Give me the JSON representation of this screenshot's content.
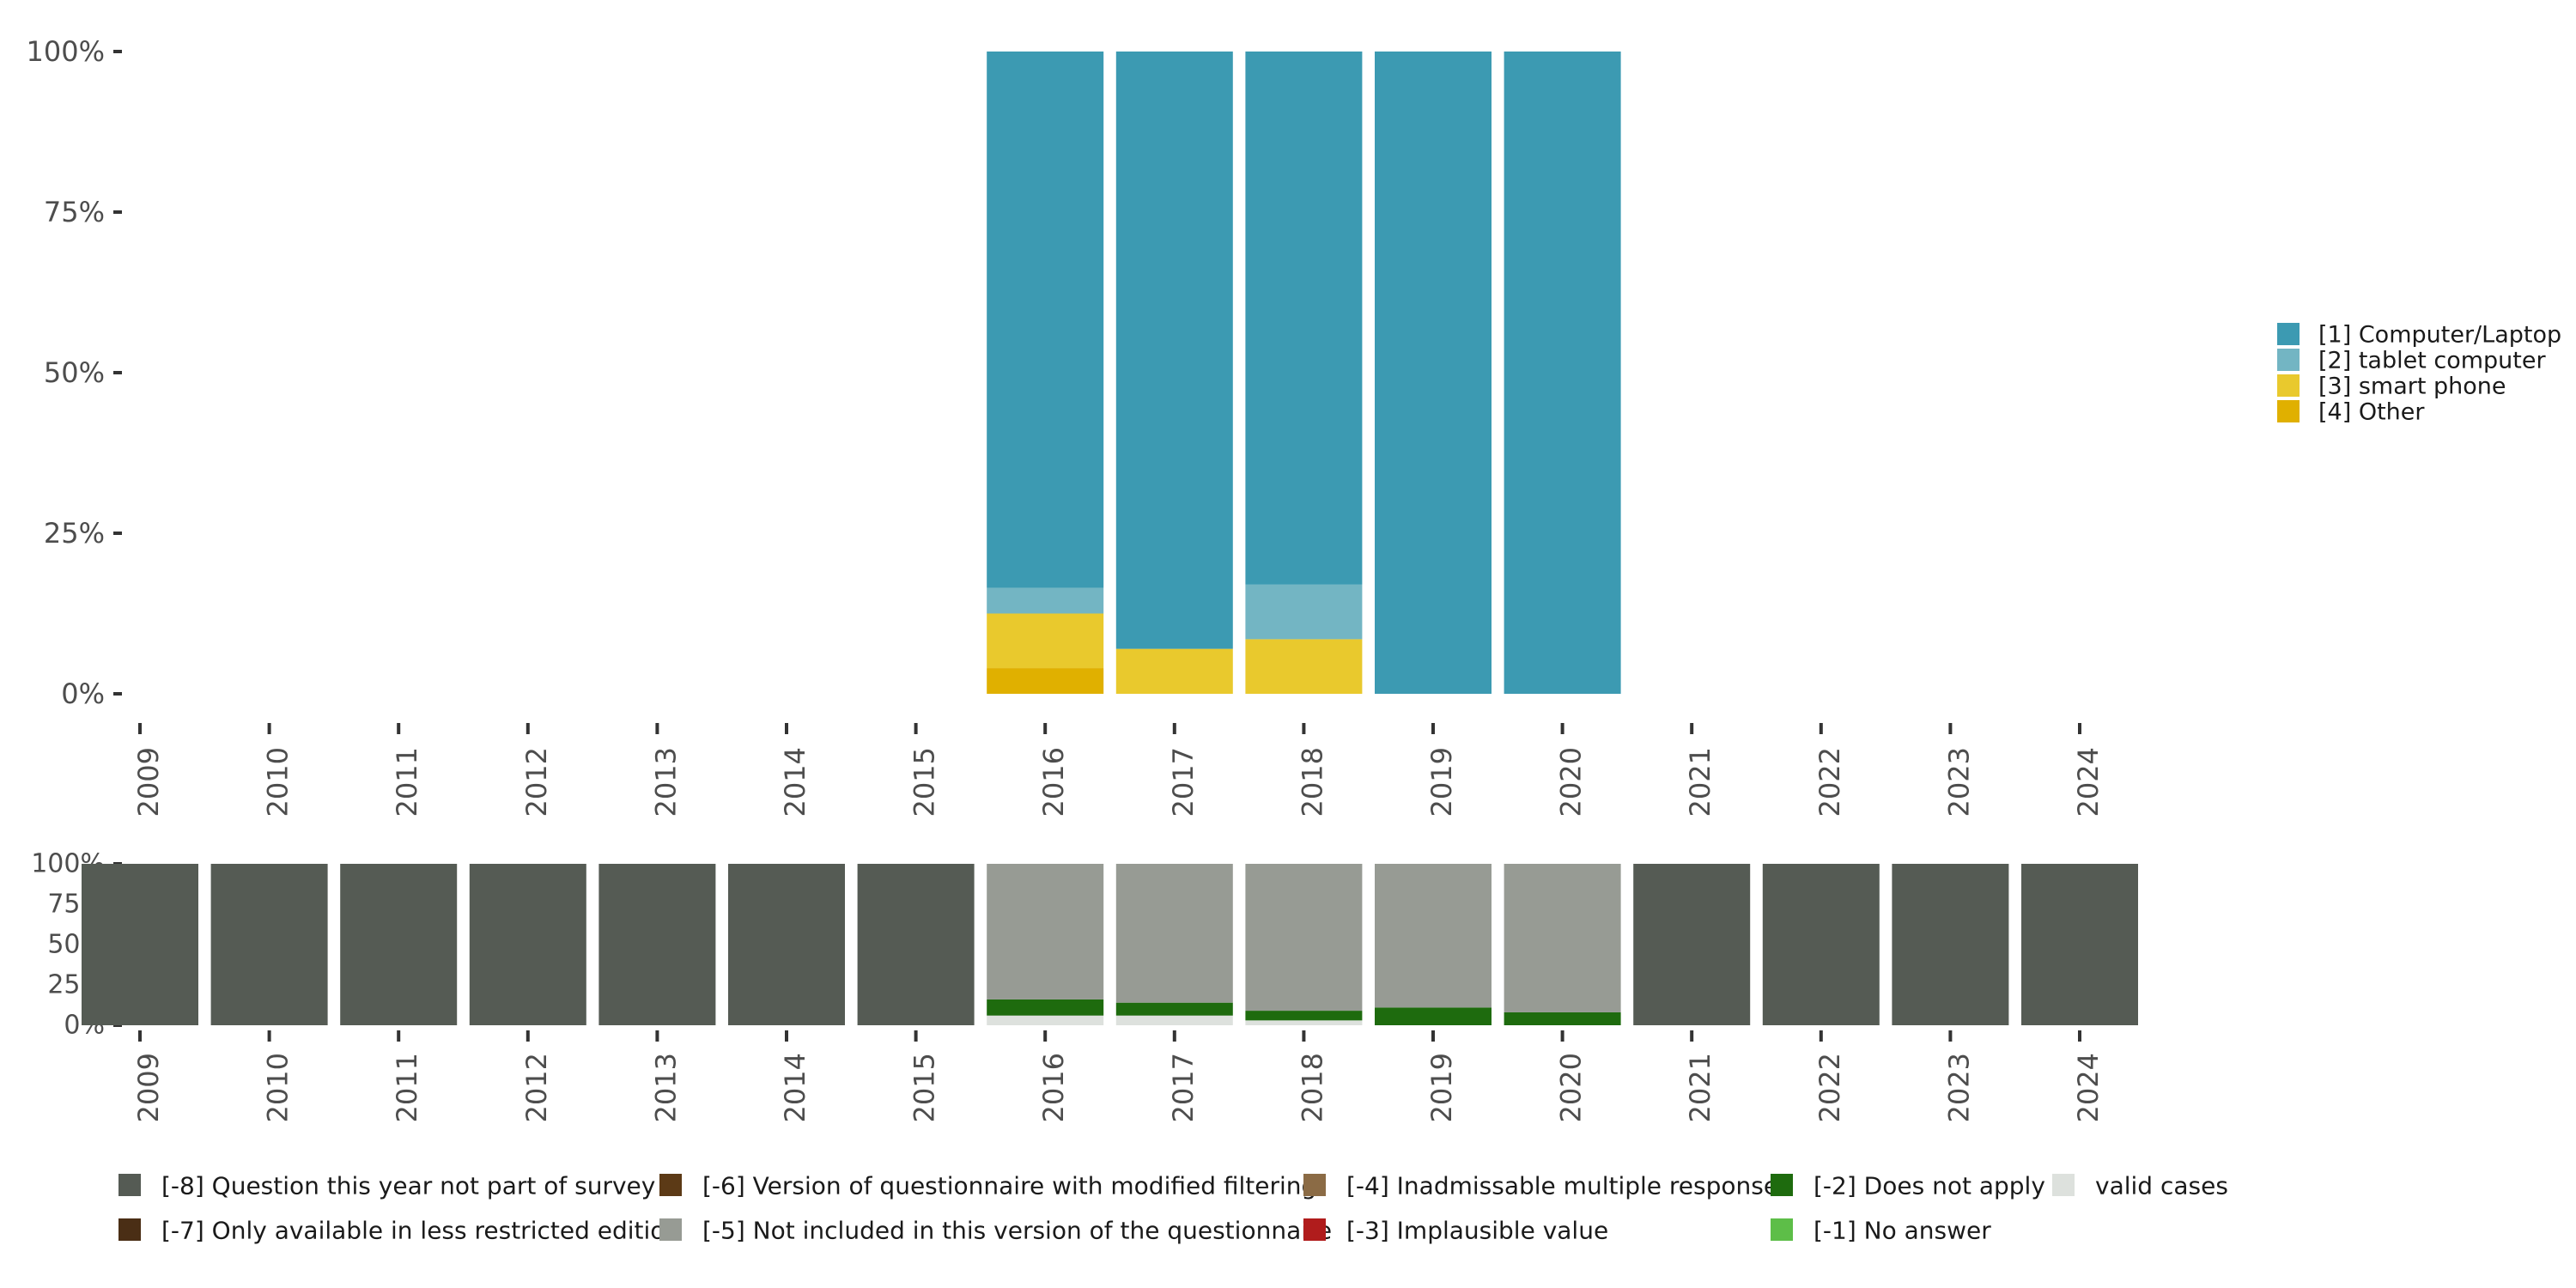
{
  "chart_data": [
    {
      "type": "bar",
      "stacked": true,
      "percent": true,
      "categories": [
        "2009",
        "2010",
        "2011",
        "2012",
        "2013",
        "2014",
        "2015",
        "2016",
        "2017",
        "2018",
        "2019",
        "2020",
        "2021",
        "2022",
        "2023",
        "2024"
      ],
      "ylim": [
        0,
        100
      ],
      "yticks": [
        "0%",
        "25%",
        "50%",
        "75%",
        "100%"
      ],
      "ytick_values": [
        0,
        25,
        50,
        75,
        100
      ],
      "legend_position": "right",
      "series": [
        {
          "name": "[4] Other",
          "color": "#E0B000",
          "values": [
            null,
            null,
            null,
            null,
            null,
            null,
            null,
            4,
            0,
            0,
            0,
            0,
            null,
            null,
            null,
            null
          ]
        },
        {
          "name": "[3] smart phone",
          "color": "#E9C92D",
          "values": [
            null,
            null,
            null,
            null,
            null,
            null,
            null,
            8.5,
            7,
            8.5,
            0,
            0,
            null,
            null,
            null,
            null
          ]
        },
        {
          "name": "[2] tablet computer",
          "color": "#73B5C3",
          "values": [
            null,
            null,
            null,
            null,
            null,
            null,
            null,
            4,
            0,
            8.5,
            0,
            0,
            null,
            null,
            null,
            null
          ]
        },
        {
          "name": "[1] Computer/Laptop",
          "color": "#3C9AB2",
          "values": [
            null,
            null,
            null,
            null,
            null,
            null,
            null,
            83.5,
            93,
            83,
            100,
            100,
            null,
            null,
            null,
            null
          ]
        }
      ],
      "legend": [
        {
          "label": "[1] Computer/Laptop",
          "color": "#3C9AB2"
        },
        {
          "label": "[2] tablet computer",
          "color": "#73B5C3"
        },
        {
          "label": "[3] smart phone",
          "color": "#E9C92D"
        },
        {
          "label": "[4] Other",
          "color": "#E0B000"
        }
      ]
    },
    {
      "type": "bar",
      "stacked": true,
      "percent": true,
      "categories": [
        "2009",
        "2010",
        "2011",
        "2012",
        "2013",
        "2014",
        "2015",
        "2016",
        "2017",
        "2018",
        "2019",
        "2020",
        "2021",
        "2022",
        "2023",
        "2024"
      ],
      "ylim": [
        0,
        100
      ],
      "yticks": [
        "0%",
        "25%",
        "50%",
        "75%",
        "100%"
      ],
      "ytick_values": [
        0,
        25,
        50,
        75,
        100
      ],
      "legend_position": "bottom",
      "series": [
        {
          "name": "valid cases",
          "color": "#DDE1DD",
          "values": [
            0,
            0,
            0,
            0,
            0,
            0,
            0,
            6,
            6,
            3,
            0,
            0,
            0,
            0,
            0,
            0
          ]
        },
        {
          "name": "[-2] Does not apply",
          "color": "#1E6B0E",
          "values": [
            0,
            0,
            0,
            0,
            0,
            0,
            0,
            10,
            8,
            6,
            11,
            8,
            0,
            0,
            0,
            0
          ]
        },
        {
          "name": "[-5] Not included in this version of the questionnaire",
          "color": "#979B94",
          "values": [
            0,
            0,
            0,
            0,
            0,
            0,
            0,
            84,
            86,
            91,
            89,
            92,
            0,
            0,
            0,
            0
          ]
        },
        {
          "name": "[-8] Question this year not part of survey",
          "color": "#555B54",
          "values": [
            100,
            100,
            100,
            100,
            100,
            100,
            100,
            0,
            0,
            0,
            0,
            0,
            100,
            100,
            100,
            100
          ]
        }
      ],
      "legend": [
        {
          "label": "[-8] Question this year not part of survey",
          "color": "#555B54"
        },
        {
          "label": "[-7] Only available in less restricted edition",
          "color": "#4A2E15"
        },
        {
          "label": "[-6] Version of questionnaire with modified filtering",
          "color": "#5C3A16"
        },
        {
          "label": "[-5] Not included in this version of the questionnaire",
          "color": "#979B94"
        },
        {
          "label": "[-4] Inadmissable multiple response",
          "color": "#8B6B45"
        },
        {
          "label": "[-3] Implausible value",
          "color": "#B01C1C"
        },
        {
          "label": "[-2] Does not apply",
          "color": "#1E6B0E"
        },
        {
          "label": "[-1] No answer",
          "color": "#5DBE48"
        },
        {
          "label": "valid cases",
          "color": "#DDE1DD"
        }
      ]
    }
  ]
}
